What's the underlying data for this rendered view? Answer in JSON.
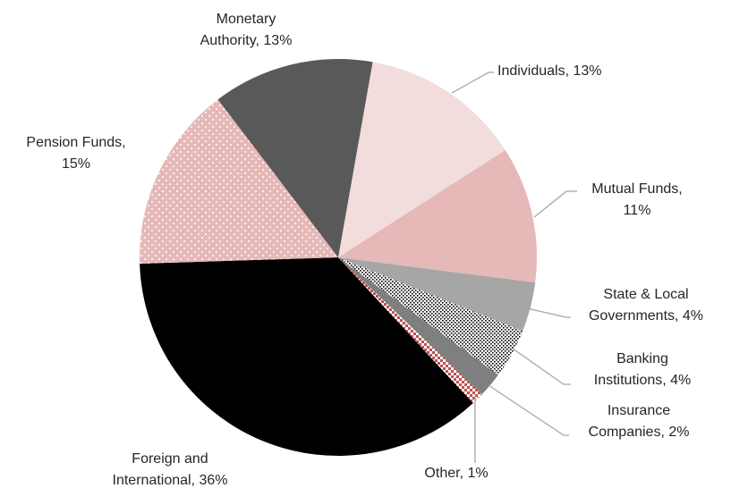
{
  "chart_data": {
    "type": "pie",
    "values": [
      13,
      11,
      4,
      4,
      2,
      1,
      36,
      15,
      13
    ],
    "value_labels": [
      "Individuals, 13%",
      "Mutual Funds,\n11%",
      "State & Local\nGovernments, 4%",
      "Banking\nInstitutions, 4%",
      "Insurance\nCompanies, 2%",
      "Other, 1%",
      "Foreign and\nInternational, 36%",
      "Pension Funds,\n15%",
      "Monetary\nAuthority, 13%"
    ],
    "colors": [
      "#f2dcdc",
      "#e6b8b8",
      "#a6a6a6",
      "#000000",
      "#7f7f7f",
      "#c0504d",
      "#000000",
      "#e6b8b8",
      "#595959"
    ],
    "patterns": [
      null,
      null,
      null,
      "dots-white",
      null,
      "checker",
      null,
      "dots-light",
      null
    ]
  }
}
